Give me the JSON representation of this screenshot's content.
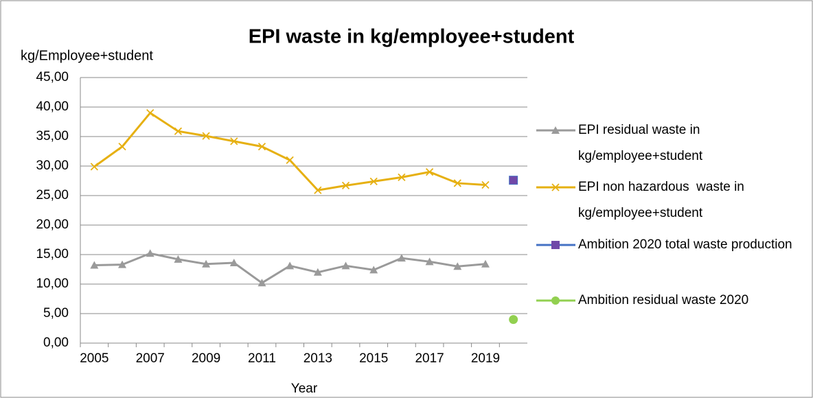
{
  "chart_data": {
    "type": "line",
    "title": "EPI waste in kg/employee+student",
    "y_label": "kg/Employee+student",
    "x_label": "Year",
    "categories": [
      "2005",
      null,
      "2007",
      null,
      "2009",
      null,
      "2011",
      null,
      "2013",
      null,
      "2015",
      null,
      "2017",
      null,
      "2019",
      null
    ],
    "series": [
      {
        "name": "EPI residual waste in kg/employee+student",
        "color": "#9a9a9a",
        "marker": "triangle",
        "values": [
          13.2,
          13.3,
          15.2,
          14.2,
          13.4,
          13.6,
          10.2,
          13.1,
          12.0,
          13.1,
          12.4,
          14.4,
          13.8,
          13.0,
          13.4,
          null
        ]
      },
      {
        "name": "EPI non hazardous  waste in kg/employee+student",
        "color": "#e6b012",
        "marker": "x",
        "values": [
          29.9,
          33.3,
          39.0,
          35.9,
          35.1,
          34.2,
          33.3,
          31.0,
          25.9,
          26.7,
          27.4,
          28.1,
          29.0,
          27.1,
          26.8,
          null
        ]
      },
      {
        "name": "Ambition 2020 total waste production",
        "color": "#4472c4",
        "marker_color": "#7048a8",
        "marker": "square",
        "values": [
          null,
          null,
          null,
          null,
          null,
          null,
          null,
          null,
          null,
          null,
          null,
          null,
          null,
          null,
          null,
          27.6
        ]
      },
      {
        "name": "Ambition residual waste 2020",
        "color": "#92d050",
        "marker": "circle",
        "values": [
          null,
          null,
          null,
          null,
          null,
          null,
          null,
          null,
          null,
          null,
          null,
          null,
          null,
          null,
          null,
          4.0
        ]
      }
    ],
    "ylim": [
      0,
      45
    ],
    "yticks": [
      {
        "value": 0,
        "label": "0,00"
      },
      {
        "value": 5,
        "label": "5,00"
      },
      {
        "value": 10,
        "label": "10,00"
      },
      {
        "value": 15,
        "label": "15,00"
      },
      {
        "value": 20,
        "label": "20,00"
      },
      {
        "value": 25,
        "label": "25,00"
      },
      {
        "value": 30,
        "label": "30,00"
      },
      {
        "value": 35,
        "label": "35,00"
      },
      {
        "value": 40,
        "label": "40,00"
      },
      {
        "value": 45,
        "label": "45,00"
      }
    ],
    "grid": true,
    "legend": "right"
  }
}
